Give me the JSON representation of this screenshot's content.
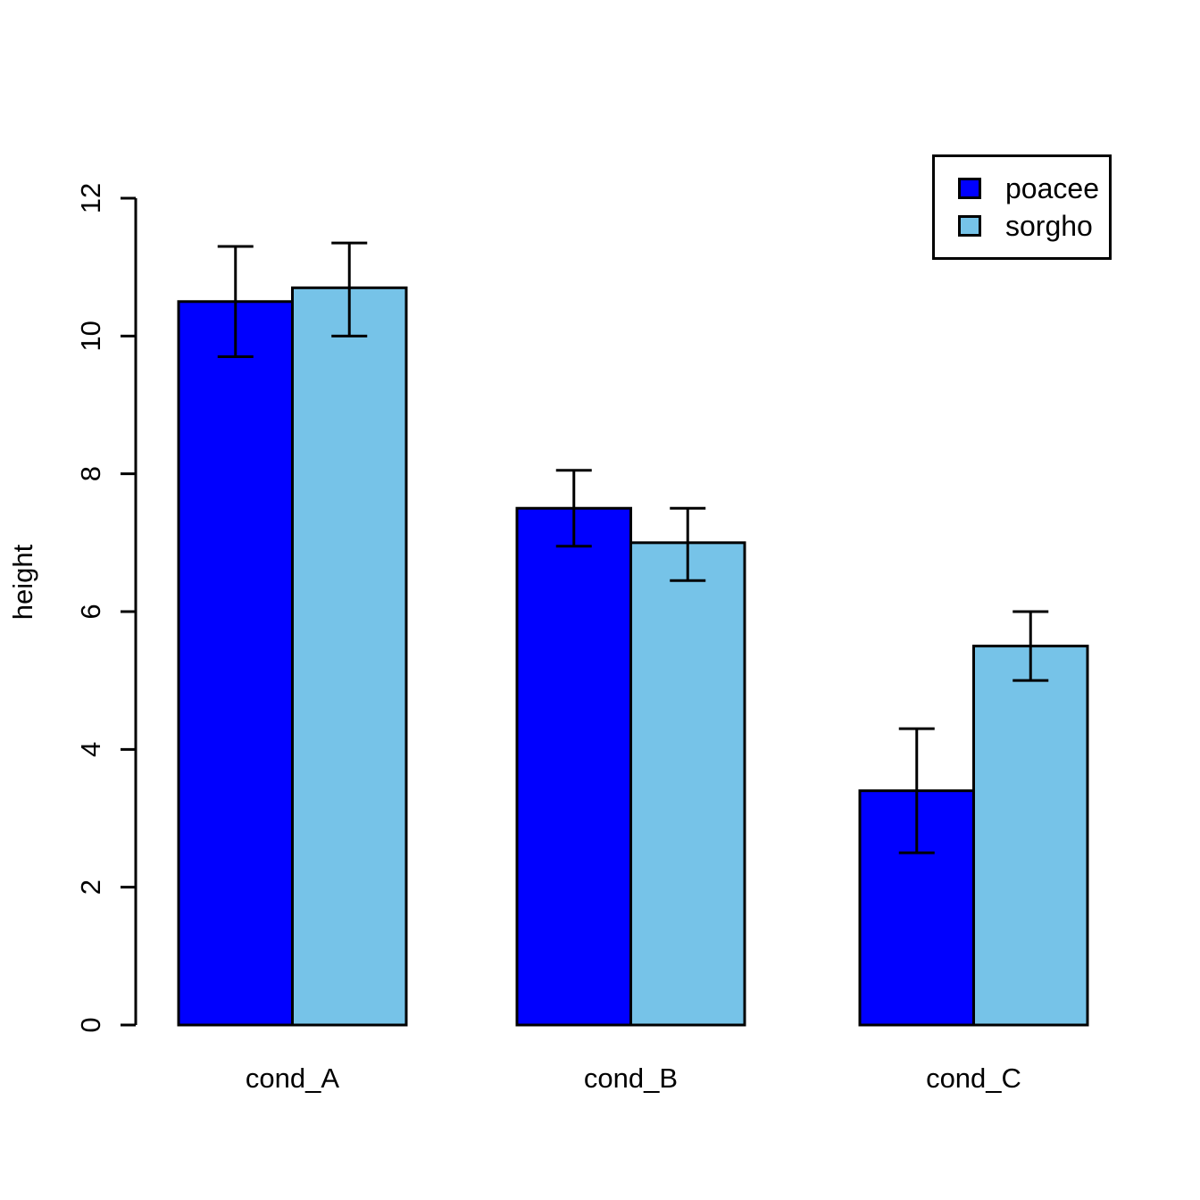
{
  "chart_data": {
    "type": "bar",
    "title": "",
    "xlabel": "",
    "ylabel": "height",
    "ylim": [
      0,
      12
    ],
    "yticks": [
      0,
      2,
      4,
      6,
      8,
      10,
      12
    ],
    "grid": false,
    "legend_position": "top-right",
    "background_color": "#ffffff",
    "axis_color": "#000000",
    "bar_border_color": "#000000",
    "error_bar_color": "#000000",
    "categories": [
      "cond_A",
      "cond_B",
      "cond_C"
    ],
    "series": [
      {
        "name": "poacee",
        "color": "#0000FF",
        "values": [
          10.5,
          7.5,
          3.4
        ],
        "error_low": [
          9.7,
          6.95,
          2.5
        ],
        "error_high": [
          11.3,
          8.05,
          4.3
        ]
      },
      {
        "name": "sorgho",
        "color": "#76C3E8",
        "values": [
          10.7,
          7.0,
          5.5
        ],
        "error_low": [
          10.0,
          6.45,
          5.0
        ],
        "error_high": [
          11.35,
          7.5,
          6.0
        ]
      }
    ]
  }
}
